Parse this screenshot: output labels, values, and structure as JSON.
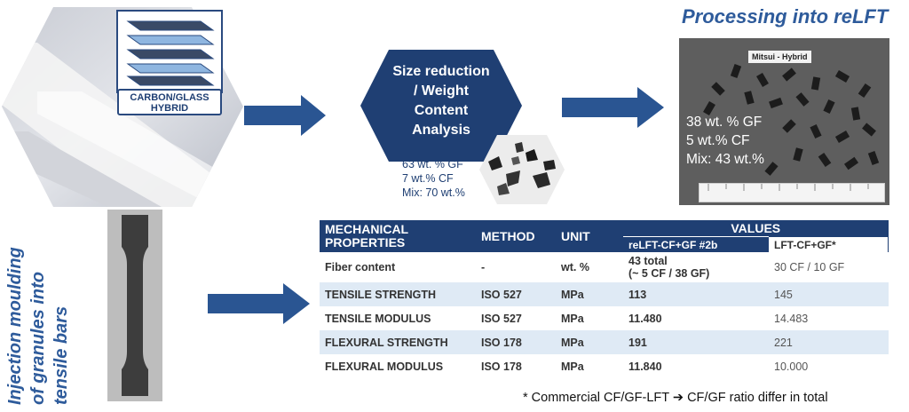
{
  "laminate": {
    "badge_line1": "CARBON/GLASS",
    "badge_line2": "HYBRID"
  },
  "size_reduction": {
    "line1": "Size reduction",
    "line2": "/ Weight",
    "line3": "Content",
    "line4": "Analysis"
  },
  "composition_initial": {
    "gf": "63 wt. % GF",
    "cf": "7 wt.% CF",
    "mix": "Mix: 70 wt.%"
  },
  "processing": {
    "title": "Processing into reLFT",
    "photo_label": "Mitsui - Hybrid",
    "gf": "38 wt. % GF",
    "cf": "5 wt.% CF",
    "mix": "Mix: 43 wt.%"
  },
  "injection_caption": {
    "line1": "Injection moulding",
    "line2": "of granules into",
    "line3": "tensile bars"
  },
  "table": {
    "header_properties_1": "MECHANICAL",
    "header_properties_2": "PROPERTIES",
    "header_method": "METHOD",
    "header_unit": "UNIT",
    "header_values": "VALUES",
    "header_relft": "reLFT-CF+GF #2b",
    "header_lft": "LFT-CF+GF*",
    "rows": [
      {
        "property": "Fiber content",
        "method": "-",
        "unit": "wt. %",
        "relft_1": "43 total",
        "relft_2": "(~ 5 CF / 38 GF)",
        "lft": "30 CF / 10 GF"
      },
      {
        "property": "TENSILE STRENGTH",
        "method": "ISO 527",
        "unit": "MPa",
        "relft": "113",
        "lft": "145"
      },
      {
        "property": "TENSILE MODULUS",
        "method": "ISO 527",
        "unit": "MPa",
        "relft": "11.480",
        "lft": "14.483"
      },
      {
        "property": "FLEXURAL STRENGTH",
        "method": "ISO 178",
        "unit": "MPa",
        "relft": "191",
        "lft": "221"
      },
      {
        "property": "FLEXURAL MODULUS",
        "method": "ISO 178",
        "unit": "MPa",
        "relft": "11.840",
        "lft": "10.000"
      }
    ]
  },
  "footnote": "* Commercial CF/GF-LFT ➔ CF/GF ratio differ in total",
  "colors": {
    "navy": "#1f3f73",
    "title_blue": "#2e5b9b",
    "row_alt": "#dfeaf5"
  }
}
